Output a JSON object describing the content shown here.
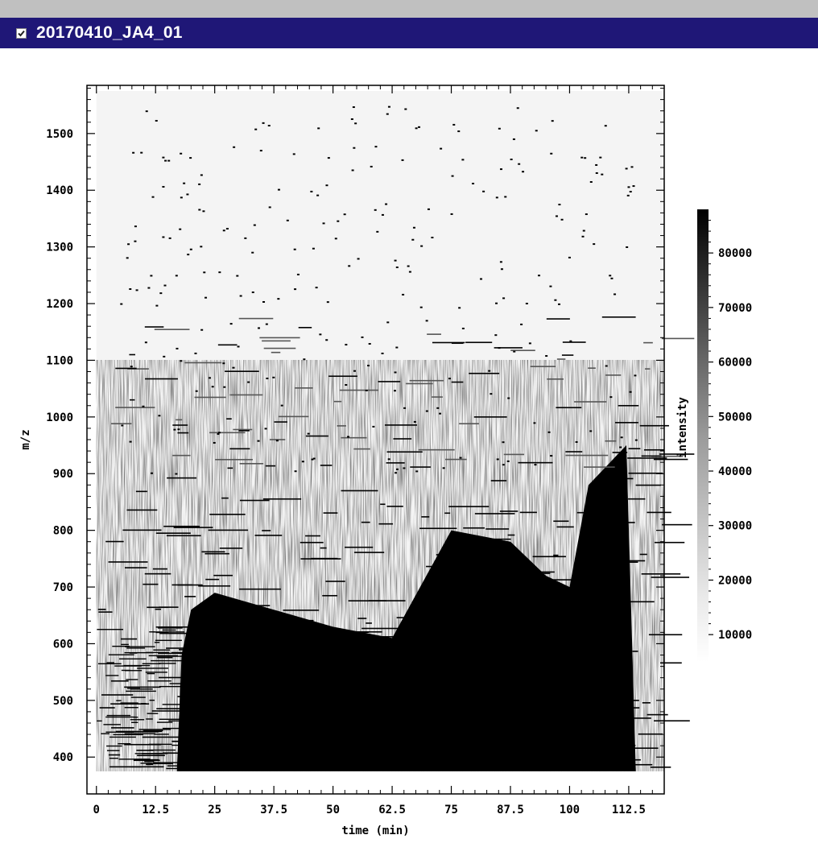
{
  "window": {
    "title": "20170410_JA4_01",
    "checkbox_checked": true,
    "title_bar_color": "#1f1777",
    "top_strip_color": "#c0c0c0"
  },
  "chart_data": {
    "type": "heatmap",
    "title": "",
    "xlabel": "time (min)",
    "ylabel": "m/z",
    "xlim": [
      -2,
      120
    ],
    "ylim": [
      335,
      1585
    ],
    "x_ticks": [
      0,
      12.5,
      25,
      37.5,
      50,
      62.5,
      75,
      87.5,
      100,
      112.5
    ],
    "x_tick_labels": [
      "0",
      "12.5",
      "25",
      "37.5",
      "50",
      "62.5",
      "75",
      "87.5",
      "100",
      "112.5"
    ],
    "y_ticks": [
      400,
      500,
      600,
      700,
      800,
      900,
      1000,
      1100,
      1200,
      1300,
      1400,
      1500
    ],
    "y_tick_labels": [
      "400",
      "500",
      "600",
      "700",
      "800",
      "900",
      "1000",
      "1100",
      "1200",
      "1300",
      "1400",
      "1500"
    ],
    "colorbar": {
      "label": "intensity",
      "min": 5000,
      "max": 88000,
      "ticks": [
        10000,
        20000,
        30000,
        40000,
        50000,
        60000,
        70000,
        80000
      ],
      "tick_labels": [
        "10000",
        "20000",
        "30000",
        "40000",
        "50000",
        "60000",
        "70000",
        "80000"
      ],
      "colormap": "white-to-black"
    },
    "data_extent": {
      "time_min": 0,
      "time_max": 120,
      "mz_min": 375,
      "mz_max": 1575
    },
    "dense_region_boundary": [
      {
        "time": 17,
        "mz": 375
      },
      {
        "time": 18,
        "mz": 580
      },
      {
        "time": 20,
        "mz": 660
      },
      {
        "time": 25,
        "mz": 690
      },
      {
        "time": 37.5,
        "mz": 660
      },
      {
        "time": 50,
        "mz": 630
      },
      {
        "time": 62.5,
        "mz": 610
      },
      {
        "time": 75,
        "mz": 800
      },
      {
        "time": 87.5,
        "mz": 780
      },
      {
        "time": 95,
        "mz": 720
      },
      {
        "time": 100,
        "mz": 700
      },
      {
        "time": 104,
        "mz": 880
      },
      {
        "time": 112,
        "mz": 950
      },
      {
        "time": 114,
        "mz": 375
      }
    ],
    "grid": false,
    "legend": "colorbar-right"
  }
}
